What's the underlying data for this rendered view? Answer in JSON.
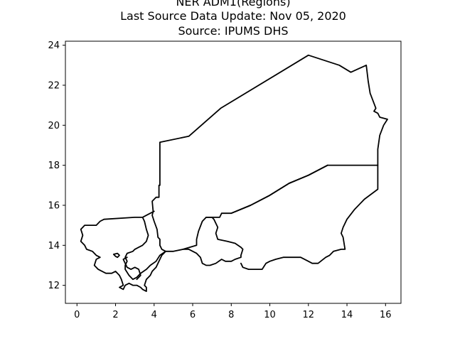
{
  "chart_data": {
    "type": "map",
    "title_lines": [
      "NER ADM1(Regions)",
      "Last Source Data Update: Nov 05, 2020",
      "Source: IPUMS DHS"
    ],
    "xlim": [
      -0.6,
      16.8
    ],
    "ylim": [
      11.1,
      24.2
    ],
    "x_ticks": [
      0,
      2,
      4,
      6,
      8,
      10,
      12,
      14,
      16
    ],
    "y_ticks": [
      12,
      14,
      16,
      18,
      20,
      22,
      24
    ],
    "grid": false,
    "line_color": "#000000",
    "regions": [
      {
        "id": "agadez",
        "coords": [
          [
            4.25,
            16.4
          ],
          [
            4.25,
            17.0
          ],
          [
            4.3,
            17.0
          ],
          [
            4.3,
            19.15
          ],
          [
            5.8,
            19.45
          ],
          [
            7.45,
            20.85
          ],
          [
            12.0,
            23.5
          ],
          [
            13.6,
            23.0
          ],
          [
            14.2,
            22.65
          ],
          [
            15.0,
            23.0
          ],
          [
            15.1,
            22.2
          ],
          [
            15.2,
            21.6
          ],
          [
            15.4,
            21.1
          ],
          [
            15.5,
            20.85
          ],
          [
            15.4,
            20.7
          ],
          [
            15.6,
            20.6
          ],
          [
            15.7,
            20.4
          ],
          [
            16.1,
            20.3
          ],
          [
            15.9,
            20.0
          ],
          [
            15.7,
            19.5
          ],
          [
            15.6,
            18.8
          ],
          [
            15.6,
            18.0
          ],
          [
            13.0,
            18.0
          ],
          [
            12.0,
            17.5
          ],
          [
            11.0,
            17.1
          ],
          [
            10.0,
            16.5
          ],
          [
            9.0,
            16.0
          ],
          [
            8.0,
            15.6
          ],
          [
            7.5,
            15.6
          ],
          [
            7.4,
            15.4
          ],
          [
            6.7,
            15.4
          ],
          [
            6.5,
            15.2
          ],
          [
            6.3,
            14.7
          ],
          [
            6.2,
            14.3
          ],
          [
            6.2,
            14.0
          ],
          [
            5.5,
            13.8
          ],
          [
            5.0,
            13.7
          ],
          [
            4.6,
            13.7
          ],
          [
            4.4,
            13.8
          ],
          [
            4.3,
            14.0
          ],
          [
            4.3,
            14.3
          ],
          [
            4.2,
            14.4
          ],
          [
            4.15,
            14.8
          ],
          [
            4.0,
            15.2
          ],
          [
            3.9,
            15.5
          ],
          [
            3.95,
            15.7
          ],
          [
            3.9,
            16.2
          ],
          [
            4.1,
            16.4
          ],
          [
            4.25,
            16.4
          ]
        ]
      },
      {
        "id": "diffa",
        "coords": [
          [
            15.6,
            18.0
          ],
          [
            15.6,
            16.8
          ],
          [
            14.9,
            16.3
          ],
          [
            14.4,
            15.8
          ],
          [
            14.0,
            15.3
          ],
          [
            13.8,
            14.9
          ],
          [
            13.7,
            14.6
          ],
          [
            13.8,
            14.4
          ],
          [
            13.9,
            13.8
          ],
          [
            13.7,
            13.8
          ],
          [
            13.3,
            13.7
          ],
          [
            13.1,
            13.5
          ],
          [
            12.9,
            13.4
          ],
          [
            12.5,
            13.1
          ],
          [
            12.2,
            13.1
          ],
          [
            12.0,
            13.2
          ],
          [
            11.6,
            13.4
          ],
          [
            11.0,
            13.4
          ],
          [
            10.7,
            13.4
          ],
          [
            10.3,
            13.3
          ],
          [
            10.0,
            13.2
          ],
          [
            9.8,
            13.1
          ],
          [
            9.6,
            12.8
          ],
          [
            8.9,
            12.8
          ],
          [
            8.6,
            12.9
          ],
          [
            8.5,
            13.1
          ]
        ],
        "inner": [
          [
            13.0,
            18.0
          ],
          [
            12.0,
            17.5
          ],
          [
            11.0,
            17.1
          ],
          [
            10.0,
            16.5
          ],
          [
            9.0,
            16.0
          ],
          [
            8.0,
            15.6
          ]
        ]
      },
      {
        "id": "zinder_maradi_border",
        "coords": [
          [
            6.7,
            15.4
          ],
          [
            7.0,
            15.4
          ],
          [
            7.1,
            15.3
          ],
          [
            7.3,
            14.9
          ],
          [
            7.2,
            14.6
          ],
          [
            7.3,
            14.3
          ],
          [
            7.8,
            14.2
          ],
          [
            8.2,
            14.1
          ],
          [
            8.5,
            13.9
          ],
          [
            8.6,
            13.8
          ],
          [
            8.5,
            13.5
          ],
          [
            8.5,
            13.4
          ],
          [
            8.2,
            13.3
          ],
          [
            8.0,
            13.2
          ],
          [
            7.7,
            13.2
          ],
          [
            7.5,
            13.3
          ],
          [
            7.2,
            13.1
          ],
          [
            6.9,
            13.0
          ],
          [
            6.7,
            13.0
          ],
          [
            6.5,
            13.1
          ],
          [
            6.4,
            13.4
          ],
          [
            6.2,
            13.6
          ],
          [
            5.8,
            13.8
          ],
          [
            5.5,
            13.8
          ]
        ]
      },
      {
        "id": "tahoua_tillaberi",
        "coords": [
          [
            4.0,
            15.7
          ],
          [
            3.8,
            15.6
          ],
          [
            3.6,
            15.5
          ],
          [
            3.4,
            15.4
          ],
          [
            3.5,
            15.2
          ],
          [
            3.6,
            14.8
          ],
          [
            3.7,
            14.5
          ],
          [
            3.6,
            14.2
          ],
          [
            3.4,
            14.0
          ],
          [
            3.2,
            13.9
          ],
          [
            3.0,
            13.8
          ]
        ]
      },
      {
        "id": "tillaberi",
        "coords": [
          [
            3.4,
            15.4
          ],
          [
            3.0,
            15.4
          ],
          [
            1.4,
            15.3
          ],
          [
            1.2,
            15.2
          ],
          [
            1.0,
            15.0
          ],
          [
            0.7,
            15.0
          ],
          [
            0.4,
            15.0
          ],
          [
            0.3,
            14.9
          ],
          [
            0.2,
            14.8
          ],
          [
            0.3,
            14.5
          ],
          [
            0.2,
            14.2
          ],
          [
            0.4,
            14.0
          ],
          [
            0.5,
            13.8
          ],
          [
            0.8,
            13.7
          ],
          [
            1.0,
            13.5
          ],
          [
            1.2,
            13.4
          ],
          [
            1.0,
            13.3
          ],
          [
            0.9,
            13.0
          ],
          [
            1.1,
            12.8
          ],
          [
            1.5,
            12.6
          ],
          [
            1.8,
            12.6
          ],
          [
            2.0,
            12.7
          ],
          [
            2.2,
            12.5
          ],
          [
            2.3,
            12.3
          ],
          [
            2.4,
            12.0
          ],
          [
            2.2,
            11.9
          ],
          [
            2.4,
            11.8
          ],
          [
            2.5,
            12.0
          ],
          [
            2.7,
            12.1
          ],
          [
            2.9,
            12.0
          ],
          [
            3.1,
            12.0
          ],
          [
            3.3,
            11.9
          ],
          [
            3.4,
            11.8
          ],
          [
            3.6,
            11.7
          ],
          [
            3.6,
            11.9
          ],
          [
            3.5,
            12.0
          ],
          [
            3.6,
            12.3
          ],
          [
            3.8,
            12.5
          ],
          [
            3.9,
            12.7
          ],
          [
            4.1,
            12.9
          ],
          [
            4.3,
            13.3
          ],
          [
            4.4,
            13.5
          ],
          [
            4.6,
            13.7
          ]
        ]
      },
      {
        "id": "niamey_dosso",
        "coords": [
          [
            4.6,
            13.7
          ],
          [
            4.3,
            13.5
          ],
          [
            4.1,
            13.2
          ],
          [
            3.8,
            13.0
          ],
          [
            3.6,
            12.8
          ],
          [
            3.3,
            12.6
          ],
          [
            3.1,
            12.4
          ],
          [
            2.9,
            12.3
          ],
          [
            2.7,
            12.5
          ],
          [
            2.5,
            12.8
          ],
          [
            2.5,
            13.0
          ],
          [
            2.6,
            13.2
          ],
          [
            2.5,
            13.4
          ],
          [
            2.6,
            13.6
          ],
          [
            2.9,
            13.7
          ],
          [
            3.0,
            13.8
          ]
        ]
      },
      {
        "id": "niamey_city",
        "coords": [
          [
            1.9,
            13.55
          ],
          [
            2.1,
            13.6
          ],
          [
            2.2,
            13.5
          ],
          [
            2.1,
            13.4
          ],
          [
            2.0,
            13.45
          ],
          [
            1.9,
            13.55
          ]
        ]
      },
      {
        "id": "dosso_inner",
        "coords": [
          [
            2.6,
            13.4
          ],
          [
            2.4,
            13.3
          ],
          [
            2.5,
            13.1
          ],
          [
            2.6,
            12.9
          ],
          [
            2.8,
            12.8
          ],
          [
            3.0,
            12.9
          ],
          [
            3.2,
            12.8
          ],
          [
            3.3,
            12.5
          ],
          [
            3.1,
            12.3
          ]
        ]
      }
    ]
  }
}
